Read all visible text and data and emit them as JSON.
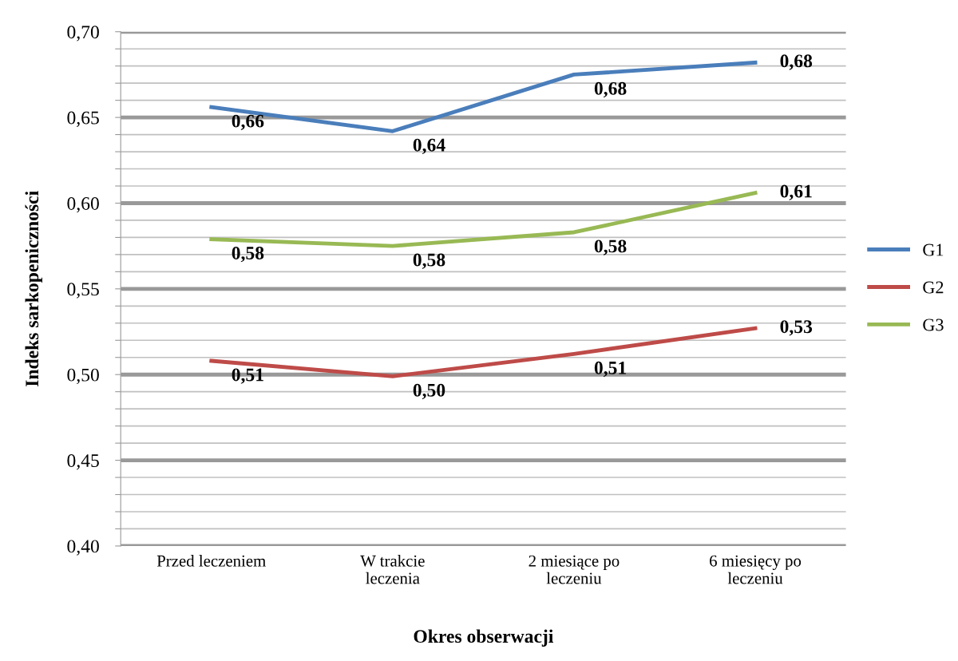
{
  "chart_data": {
    "type": "line",
    "xlabel": "Okres obserwacji",
    "ylabel": "Indeks sarkopeniczności",
    "categories": [
      "Przed leczeniem",
      "W trakcie leczenia",
      "2 miesiące po leczeniu",
      "6 miesięcy po leczeniu"
    ],
    "series": [
      {
        "name": "G1",
        "color": "#4a7ebb",
        "values": [
          0.656,
          0.642,
          0.675,
          0.682
        ],
        "value_labels": [
          "0,66",
          "0,64",
          "0,68",
          "0,68"
        ]
      },
      {
        "name": "G2",
        "color": "#be4b48",
        "values": [
          0.508,
          0.499,
          0.512,
          0.527
        ],
        "value_labels": [
          "0,51",
          "0,50",
          "0,51",
          "0,53"
        ]
      },
      {
        "name": "G3",
        "color": "#98b954",
        "values": [
          0.579,
          0.575,
          0.583,
          0.606
        ],
        "value_labels": [
          "0,58",
          "0,58",
          "0,58",
          "0,61"
        ]
      }
    ],
    "ylim": [
      0.4,
      0.7
    ],
    "yticks": [
      {
        "value": 0.4,
        "label": "0,40"
      },
      {
        "value": 0.41,
        "label": null
      },
      {
        "value": 0.42,
        "label": null
      },
      {
        "value": 0.43,
        "label": null
      },
      {
        "value": 0.44,
        "label": null
      },
      {
        "value": 0.45,
        "label": "0,45"
      },
      {
        "value": 0.46,
        "label": null
      },
      {
        "value": 0.47,
        "label": null
      },
      {
        "value": 0.48,
        "label": null
      },
      {
        "value": 0.49,
        "label": null
      },
      {
        "value": 0.5,
        "label": "0,50"
      },
      {
        "value": 0.51,
        "label": null
      },
      {
        "value": 0.52,
        "label": null
      },
      {
        "value": 0.53,
        "label": null
      },
      {
        "value": 0.54,
        "label": null
      },
      {
        "value": 0.55,
        "label": "0,55"
      },
      {
        "value": 0.56,
        "label": null
      },
      {
        "value": 0.57,
        "label": null
      },
      {
        "value": 0.58,
        "label": null
      },
      {
        "value": 0.59,
        "label": null
      },
      {
        "value": 0.6,
        "label": "0,60"
      },
      {
        "value": 0.61,
        "label": null
      },
      {
        "value": 0.62,
        "label": null
      },
      {
        "value": 0.63,
        "label": null
      },
      {
        "value": 0.64,
        "label": null
      },
      {
        "value": 0.65,
        "label": "0,65"
      },
      {
        "value": 0.66,
        "label": null
      },
      {
        "value": 0.67,
        "label": null
      },
      {
        "value": 0.68,
        "label": null
      },
      {
        "value": 0.69,
        "label": null
      },
      {
        "value": 0.7,
        "label": "0,70"
      }
    ],
    "grid": "y",
    "legend": "right",
    "marker": "none",
    "line_style": "solid"
  }
}
